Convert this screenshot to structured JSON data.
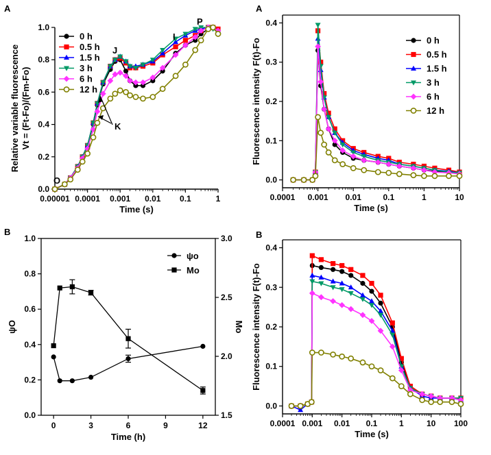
{
  "colors": {
    "0 h": "#000000",
    "0.5 h": "#ff0000",
    "1.5 h": "#0000ff",
    "3 h": "#009966",
    "6 h": "#ff33ff",
    "12 h": "#808000"
  },
  "chart_data": [
    {
      "id": "top-left",
      "panel_label": "A",
      "type": "line",
      "xscale": "log",
      "xlim": [
        1e-05,
        1
      ],
      "ylim": [
        0,
        1.0
      ],
      "xticks": [
        "0.00001",
        "0.0001",
        "0.001",
        "0.01",
        "0.1",
        "1"
      ],
      "yticks": [
        "0.0",
        "0.2",
        "0.4",
        "0.6",
        "0.8",
        "1.0"
      ],
      "xlabel": "Time (s)",
      "ylabel_lines": [
        "Relative variable fluorescence",
        "Vt = (Ft-Fo)/(Fm-Fo)"
      ],
      "legend": [
        "0 h",
        "0.5 h",
        "1.5 h",
        "3 h",
        "6 h",
        "12 h"
      ],
      "annotations": [
        "O",
        "J",
        "I",
        "P",
        "K"
      ],
      "x": [
        1e-05,
        2e-05,
        3e-05,
        5e-05,
        7e-05,
        0.0001,
        0.00015,
        0.0002,
        0.0003,
        0.0005,
        0.0007,
        0.001,
        0.0015,
        0.002,
        0.003,
        0.005,
        0.01,
        0.02,
        0.05,
        0.1,
        0.2,
        0.3,
        0.5,
        0.7,
        1.0
      ],
      "series": [
        {
          "name": "0 h",
          "values": [
            0.0,
            0.03,
            0.07,
            0.14,
            0.2,
            0.27,
            0.4,
            0.52,
            0.65,
            0.74,
            0.79,
            0.8,
            0.73,
            0.67,
            0.64,
            0.64,
            0.67,
            0.73,
            0.84,
            0.89,
            0.92,
            0.96,
            0.99,
            1.0,
            0.98
          ]
        },
        {
          "name": "0.5 h",
          "values": [
            0.0,
            0.03,
            0.07,
            0.14,
            0.2,
            0.27,
            0.41,
            0.53,
            0.66,
            0.76,
            0.8,
            0.81,
            0.78,
            0.75,
            0.75,
            0.76,
            0.78,
            0.83,
            0.88,
            0.92,
            0.95,
            0.98,
            1.0,
            1.0,
            0.99
          ]
        },
        {
          "name": "1.5 h",
          "values": [
            0.0,
            0.03,
            0.07,
            0.14,
            0.2,
            0.27,
            0.41,
            0.53,
            0.66,
            0.76,
            0.8,
            0.82,
            0.79,
            0.76,
            0.76,
            0.77,
            0.79,
            0.84,
            0.91,
            0.95,
            0.98,
            0.99,
            1.0,
            1.0,
            0.98
          ]
        },
        {
          "name": "3 h",
          "values": [
            0.0,
            0.03,
            0.07,
            0.14,
            0.2,
            0.27,
            0.41,
            0.53,
            0.66,
            0.76,
            0.8,
            0.82,
            0.79,
            0.76,
            0.75,
            0.77,
            0.8,
            0.86,
            0.93,
            0.96,
            0.99,
            1.0,
            1.0,
            0.99,
            0.97
          ]
        },
        {
          "name": "6 h",
          "values": [
            0.0,
            0.03,
            0.07,
            0.13,
            0.19,
            0.25,
            0.37,
            0.48,
            0.59,
            0.67,
            0.71,
            0.72,
            0.7,
            0.67,
            0.66,
            0.66,
            0.69,
            0.75,
            0.83,
            0.89,
            0.94,
            0.98,
            1.0,
            1.0,
            0.98
          ]
        },
        {
          "name": "12 h",
          "values": [
            0.0,
            0.03,
            0.06,
            0.12,
            0.17,
            0.22,
            0.32,
            0.41,
            0.5,
            0.56,
            0.59,
            0.61,
            0.6,
            0.58,
            0.57,
            0.56,
            0.57,
            0.62,
            0.7,
            0.77,
            0.86,
            0.92,
            0.99,
            1.0,
            0.96
          ]
        }
      ]
    },
    {
      "id": "top-right",
      "panel_label": "A",
      "type": "line",
      "xscale": "log",
      "xlim": [
        0.0001,
        10
      ],
      "ylim": [
        -0.02,
        0.42
      ],
      "xticks": [
        "0.0001",
        "0.001",
        "0.01",
        "0.1",
        "1",
        "10"
      ],
      "yticks": [
        "0.0",
        "0.1",
        "0.2",
        "0.3",
        "0.4"
      ],
      "xlabel": "Time (s)",
      "ylabel": "Fluorescence intensity F(t)-Fo",
      "legend": [
        "0 h",
        "0.5 h",
        "1.5 h",
        "3 h",
        "6 h",
        "12 h"
      ],
      "x": [
        0.0002,
        0.0004,
        0.0007,
        0.00085,
        0.001,
        0.0012,
        0.0015,
        0.002,
        0.003,
        0.005,
        0.01,
        0.02,
        0.05,
        0.1,
        0.2,
        0.5,
        1,
        2,
        5,
        10
      ],
      "series": [
        {
          "name": "0 h",
          "values": [
            0.0,
            0.0,
            0.0,
            0.02,
            0.33,
            0.24,
            0.18,
            0.13,
            0.09,
            0.07,
            0.055,
            0.05,
            0.045,
            0.04,
            0.035,
            0.03,
            0.025,
            0.022,
            0.02,
            0.018
          ]
        },
        {
          "name": "0.5 h",
          "values": [
            0.0,
            0.0,
            0.0,
            0.02,
            0.38,
            0.3,
            0.22,
            0.17,
            0.13,
            0.1,
            0.08,
            0.07,
            0.06,
            0.055,
            0.045,
            0.04,
            0.035,
            0.03,
            0.025,
            0.02
          ]
        },
        {
          "name": "1.5 h",
          "values": [
            0.0,
            0.0,
            0.0,
            0.02,
            0.36,
            0.28,
            0.21,
            0.16,
            0.12,
            0.095,
            0.075,
            0.065,
            0.055,
            0.05,
            0.04,
            0.035,
            0.03,
            0.025,
            0.022,
            0.018
          ]
        },
        {
          "name": "3 h",
          "values": [
            0.0,
            0.0,
            0.0,
            0.02,
            0.395,
            0.29,
            0.21,
            0.16,
            0.12,
            0.09,
            0.07,
            0.06,
            0.05,
            0.045,
            0.04,
            0.035,
            0.03,
            0.025,
            0.02,
            0.018
          ]
        },
        {
          "name": "6 h",
          "values": [
            0.0,
            0.0,
            0.0,
            0.02,
            0.34,
            0.25,
            0.18,
            0.13,
            0.1,
            0.075,
            0.06,
            0.05,
            0.045,
            0.04,
            0.035,
            0.03,
            0.025,
            0.02,
            0.018,
            0.015
          ]
        },
        {
          "name": "12 h",
          "values": [
            0.0,
            0.0,
            0.0,
            0.01,
            0.16,
            0.12,
            0.09,
            0.07,
            0.05,
            0.04,
            0.03,
            0.025,
            0.02,
            0.018,
            0.015,
            0.012,
            0.01,
            0.01,
            0.01,
            0.01
          ]
        }
      ]
    },
    {
      "id": "bottom-left",
      "panel_label": "B",
      "type": "line",
      "xlim": [
        -1,
        13
      ],
      "ylim": [
        0.0,
        1.0
      ],
      "y2lim": [
        1.5,
        3.0
      ],
      "xticks": [
        "0",
        "3",
        "6",
        "9",
        "12"
      ],
      "yticks": [
        "0.0",
        "0.2",
        "0.4",
        "0.6",
        "0.8",
        "1.0"
      ],
      "y2ticks": [
        "1.5",
        "2.0",
        "2.5",
        "3.0"
      ],
      "xlabel": "Time (h)",
      "ylabel": "ψO",
      "y2label": "Mo",
      "legend": [
        "ψo",
        "Mo"
      ],
      "x": [
        0,
        0.5,
        1.5,
        3,
        6,
        12
      ],
      "series": [
        {
          "name": "ψo",
          "axis": "left",
          "values": [
            0.33,
            0.195,
            0.195,
            0.215,
            0.32,
            0.39
          ],
          "errors": [
            0,
            0,
            0,
            0,
            0.02,
            0
          ]
        },
        {
          "name": "Mo",
          "axis": "right",
          "values": [
            2.09,
            2.58,
            2.59,
            2.54,
            2.15,
            1.71
          ],
          "errors": [
            0,
            0,
            0.06,
            0.02,
            0.08,
            0.03
          ]
        }
      ]
    },
    {
      "id": "bottom-right",
      "panel_label": "B",
      "type": "line",
      "xscale": "log",
      "xlim": [
        0.0001,
        100
      ],
      "ylim": [
        -0.02,
        0.42
      ],
      "xticks": [
        "0.0001",
        "0.001",
        "0.01",
        "0.1",
        "1",
        "10",
        "100"
      ],
      "yticks": [
        "0.0",
        "0.1",
        "0.2",
        "0.3",
        "0.4"
      ],
      "xlabel": "Time (s)",
      "ylabel": "Fluorescence intensity F(t)-Fo",
      "x": [
        0.0002,
        0.0004,
        0.0007,
        0.00095,
        0.001,
        0.002,
        0.005,
        0.01,
        0.02,
        0.05,
        0.1,
        0.2,
        0.5,
        1,
        2,
        5,
        10,
        20,
        50,
        100
      ],
      "series": [
        {
          "name": "0 h",
          "values": [
            0.0,
            0.0,
            0.005,
            0.01,
            0.355,
            0.35,
            0.345,
            0.34,
            0.33,
            0.31,
            0.29,
            0.26,
            0.2,
            0.11,
            0.05,
            0.03,
            0.025,
            0.02,
            0.02,
            0.02
          ]
        },
        {
          "name": "0.5 h",
          "values": [
            0.0,
            0.0,
            0.005,
            0.01,
            0.38,
            0.37,
            0.36,
            0.355,
            0.345,
            0.33,
            0.31,
            0.28,
            0.21,
            0.12,
            0.05,
            0.03,
            0.025,
            0.02,
            0.02,
            0.02
          ]
        },
        {
          "name": "1.5 h",
          "values": [
            0.0,
            -0.01,
            0.005,
            0.01,
            0.33,
            0.325,
            0.315,
            0.31,
            0.3,
            0.28,
            0.265,
            0.24,
            0.19,
            0.1,
            0.045,
            0.025,
            0.02,
            0.02,
            0.02,
            0.015
          ]
        },
        {
          "name": "3 h",
          "values": [
            0.0,
            0.0,
            0.005,
            0.01,
            0.315,
            0.31,
            0.3,
            0.295,
            0.285,
            0.27,
            0.255,
            0.23,
            0.18,
            0.1,
            0.045,
            0.03,
            0.025,
            0.02,
            0.02,
            0.02
          ]
        },
        {
          "name": "6 h",
          "values": [
            0.0,
            0.0,
            0.005,
            0.01,
            0.285,
            0.275,
            0.265,
            0.255,
            0.245,
            0.23,
            0.215,
            0.19,
            0.15,
            0.09,
            0.04,
            0.03,
            0.025,
            0.02,
            0.02,
            0.015
          ]
        },
        {
          "name": "12 h",
          "values": [
            0.0,
            0.0,
            0.005,
            0.01,
            0.135,
            0.135,
            0.13,
            0.125,
            0.12,
            0.11,
            0.1,
            0.09,
            0.07,
            0.05,
            0.03,
            0.015,
            0.01,
            0.01,
            0.01,
            0.005
          ]
        }
      ]
    }
  ]
}
